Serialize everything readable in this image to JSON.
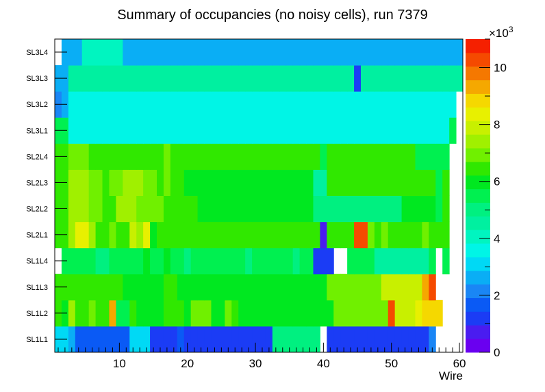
{
  "chart_data": {
    "type": "heatmap",
    "title": "Summary of occupancies (no noisy cells), run 7379",
    "xlabel": "Wire",
    "ylabel": "",
    "x_range": [
      0.5,
      60.5
    ],
    "x_ticks": [
      10,
      20,
      30,
      40,
      50,
      60
    ],
    "y_categories": [
      "SL1L1",
      "SL1L2",
      "SL1L3",
      "SL1L4",
      "SL2L1",
      "SL2L2",
      "SL2L3",
      "SL2L4",
      "SL3L1",
      "SL3L2",
      "SL3L3",
      "SL3L4"
    ],
    "z_range": [
      0,
      11000
    ],
    "z_multiplier_label": "×10",
    "z_multiplier_exp": "3",
    "z_ticks": [
      0,
      2,
      4,
      6,
      8,
      10
    ],
    "palette": [
      "#6a00f0",
      "#4a1cf0",
      "#1b3cf5",
      "#0a5af5",
      "#1a86f5",
      "#0aaef5",
      "#00d9f5",
      "#00f5e6",
      "#00f5c0",
      "#00f0a0",
      "#00f080",
      "#00f050",
      "#00e820",
      "#30e800",
      "#70f000",
      "#a0f000",
      "#c8f000",
      "#e8f000",
      "#f5d800",
      "#f5a800",
      "#f57800",
      "#f54a00",
      "#f52000"
    ],
    "values": [
      [
        3200,
        3200,
        2800,
        1700,
        1700,
        1700,
        1700,
        1700,
        1700,
        1700,
        1700,
        3200,
        3200,
        3200,
        1400,
        1400,
        1400,
        1400,
        1700,
        1400,
        1400,
        1400,
        1400,
        1400,
        1400,
        1400,
        1400,
        1400,
        1400,
        1400,
        1400,
        1400,
        5100,
        5100,
        5100,
        5100,
        5100,
        5100,
        5100,
        null,
        1400,
        1400,
        1400,
        1400,
        1400,
        1100,
        1400,
        1400,
        1400,
        1400,
        1400,
        1400,
        1400,
        1400,
        1400,
        2300,
        null,
        null,
        null,
        null
      ],
      [
        6400,
        5800,
        7200,
        6500,
        6500,
        6800,
        6400,
        6400,
        9400,
        5400,
        5400,
        6400,
        6000,
        6000,
        6000,
        6100,
        6400,
        6300,
        6400,
        5900,
        7000,
        7000,
        7000,
        5900,
        5900,
        6800,
        6400,
        6000,
        6000,
        6000,
        6000,
        6000,
        6000,
        6000,
        6000,
        6000,
        6000,
        6000,
        6000,
        6000,
        6000,
        7000,
        7000,
        7000,
        7000,
        7000,
        7000,
        7000,
        7000,
        10400,
        7800,
        7800,
        7800,
        8600,
        8900,
        8900,
        8900,
        null,
        null,
        null
      ],
      [
        6600,
        6600,
        6600,
        6600,
        6600,
        6600,
        6600,
        6600,
        6600,
        6600,
        5900,
        5900,
        5900,
        5900,
        5900,
        5900,
        6600,
        6600,
        6000,
        6000,
        6000,
        6000,
        6000,
        6000,
        6000,
        6000,
        6000,
        6000,
        6000,
        6000,
        6000,
        6000,
        6000,
        6000,
        6000,
        6000,
        6000,
        6000,
        6000,
        6000,
        7000,
        7000,
        7000,
        7000,
        7000,
        7000,
        7000,
        7000,
        7800,
        7800,
        7800,
        7800,
        7800,
        7800,
        9400,
        10400,
        null,
        null,
        null,
        null
      ],
      [
        null,
        5300,
        5300,
        5300,
        5300,
        5300,
        4800,
        4800,
        5300,
        5300,
        5300,
        5300,
        5300,
        6100,
        5300,
        5300,
        6100,
        5300,
        5300,
        4800,
        5300,
        5300,
        5300,
        5300,
        5300,
        5300,
        5300,
        5300,
        4800,
        5300,
        5300,
        5300,
        5300,
        5300,
        5300,
        4800,
        5300,
        5300,
        1000,
        1000,
        1000,
        null,
        null,
        5300,
        5300,
        5300,
        5300,
        4600,
        4600,
        4600,
        4600,
        4600,
        4600,
        4600,
        4600,
        5600,
        null,
        5300,
        null,
        null
      ],
      [
        6400,
        6400,
        7400,
        8200,
        8200,
        7400,
        6600,
        6600,
        6800,
        6600,
        6600,
        8000,
        7200,
        8600,
        6000,
        6600,
        6400,
        6400,
        6400,
        6400,
        6400,
        6400,
        6400,
        6400,
        6400,
        6400,
        6400,
        6400,
        6400,
        6400,
        6400,
        6400,
        6400,
        6400,
        6400,
        6400,
        6400,
        6400,
        6400,
        700,
        6400,
        6400,
        6400,
        6400,
        10200,
        10400,
        7000,
        6400,
        7000,
        6400,
        6400,
        6400,
        6400,
        6400,
        7000,
        6400,
        6400,
        6400,
        null,
        null
      ],
      [
        6300,
        6300,
        7500,
        7600,
        7600,
        7000,
        7000,
        6600,
        6600,
        7400,
        7400,
        7400,
        7000,
        7000,
        7000,
        7000,
        6400,
        6400,
        6400,
        6400,
        6400,
        6200,
        6200,
        6200,
        6200,
        6200,
        6200,
        6200,
        6200,
        6200,
        6200,
        6200,
        6200,
        6200,
        6200,
        6200,
        6200,
        6200,
        5100,
        5100,
        5100,
        5100,
        5100,
        5100,
        5100,
        5100,
        5100,
        5100,
        5100,
        5100,
        5100,
        6100,
        6100,
        6100,
        6100,
        6100,
        5600,
        6500,
        null,
        null
      ],
      [
        6300,
        6300,
        7300,
        7300,
        7300,
        6900,
        6900,
        6500,
        6900,
        6900,
        7300,
        7300,
        7300,
        6700,
        6700,
        6600,
        6700,
        6500,
        6500,
        6200,
        6200,
        6200,
        6200,
        6200,
        6200,
        6200,
        6200,
        6200,
        6200,
        6200,
        6200,
        6200,
        6200,
        6200,
        6200,
        6200,
        6200,
        6200,
        4600,
        4600,
        6300,
        6300,
        6300,
        6300,
        6300,
        6300,
        6300,
        6300,
        6300,
        6300,
        6300,
        6300,
        6300,
        6300,
        6300,
        6300,
        5600,
        6300,
        null,
        null
      ],
      [
        6300,
        6300,
        6900,
        6900,
        6900,
        6600,
        6600,
        6600,
        6600,
        6600,
        6600,
        6600,
        6600,
        6600,
        6600,
        6600,
        6900,
        6400,
        6400,
        6400,
        6400,
        6400,
        6400,
        6400,
        6400,
        6400,
        6400,
        6400,
        6400,
        6400,
        6400,
        6400,
        6400,
        6400,
        6400,
        6400,
        6400,
        6400,
        6400,
        5400,
        6400,
        6400,
        6400,
        6400,
        6400,
        6400,
        6400,
        6400,
        6400,
        6400,
        6400,
        6400,
        6400,
        5600,
        5600,
        5600,
        5600,
        5600,
        null,
        null
      ],
      [
        5300,
        5300,
        3400,
        3400,
        3400,
        3400,
        3400,
        3400,
        3400,
        3400,
        3400,
        3400,
        3400,
        3400,
        3400,
        3400,
        3400,
        3400,
        3400,
        3400,
        3400,
        3400,
        3400,
        3400,
        3400,
        3400,
        3400,
        3400,
        3400,
        3400,
        3400,
        3400,
        3400,
        3400,
        3400,
        3400,
        3400,
        3400,
        3400,
        3400,
        3400,
        3400,
        3400,
        3400,
        3400,
        3400,
        3400,
        3400,
        3400,
        3400,
        3400,
        3400,
        3400,
        3400,
        3400,
        3400,
        3400,
        3400,
        5300,
        null
      ],
      [
        2100,
        2800,
        3800,
        3400,
        3800,
        3400,
        3400,
        3800,
        3800,
        3400,
        3400,
        3400,
        3400,
        3800,
        3800,
        3400,
        3400,
        3400,
        3400,
        3800,
        3800,
        3800,
        3400,
        3800,
        3400,
        3800,
        3800,
        3400,
        3400,
        3400,
        3400,
        3400,
        3400,
        3400,
        3400,
        3400,
        3400,
        3400,
        3400,
        3400,
        3400,
        3400,
        3400,
        3400,
        3400,
        3400,
        3400,
        3400,
        3400,
        3400,
        3400,
        3400,
        3400,
        3400,
        3400,
        3400,
        3400,
        3400,
        3400,
        null
      ],
      [
        2800,
        2800,
        4600,
        4600,
        4600,
        4600,
        4600,
        4600,
        4600,
        4600,
        4600,
        4600,
        4600,
        4600,
        4600,
        4600,
        4600,
        4600,
        4600,
        4600,
        4600,
        4600,
        4600,
        4600,
        4600,
        4600,
        4600,
        4600,
        4600,
        4600,
        4600,
        4600,
        4600,
        4600,
        4600,
        4600,
        4600,
        4600,
        4600,
        4600,
        4600,
        4600,
        4600,
        4600,
        1200,
        4600,
        4600,
        4600,
        4600,
        4600,
        4600,
        4600,
        4600,
        4600,
        4600,
        4600,
        4600,
        4600,
        4600,
        4600
      ],
      [
        null,
        2600,
        2600,
        2800,
        4300,
        4300,
        4300,
        4300,
        4300,
        4300,
        2600,
        2600,
        2600,
        2600,
        2600,
        2600,
        2600,
        2600,
        2600,
        2600,
        2600,
        2600,
        2600,
        2600,
        2600,
        2600,
        2600,
        2600,
        2600,
        2600,
        2600,
        2600,
        2600,
        2600,
        2600,
        2600,
        2600,
        2600,
        2600,
        2600,
        2600,
        2600,
        2600,
        2600,
        2600,
        2600,
        2600,
        2600,
        2600,
        2600,
        2600,
        2600,
        2600,
        2600,
        2600,
        2600,
        2600,
        2600,
        2600,
        2600
      ]
    ]
  }
}
